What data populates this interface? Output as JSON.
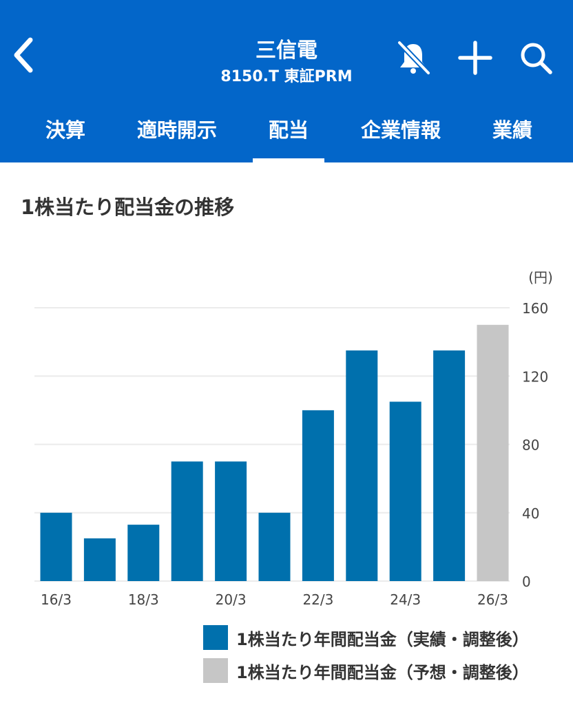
{
  "header": {
    "title": "三信電",
    "subtitle": "8150.T 東証PRM"
  },
  "tabs": [
    {
      "label": "決算"
    },
    {
      "label": "適時開示"
    },
    {
      "label": "配当",
      "active": true
    },
    {
      "label": "企業情報"
    },
    {
      "label": "業績"
    }
  ],
  "section": {
    "title": "1株当たり配当金の推移"
  },
  "colors": {
    "header": "#0366c9",
    "actual": "#0070ad",
    "forecast": "#c6c6c6"
  },
  "chart_data": {
    "type": "bar",
    "unit_label": "(円)",
    "categories": [
      "16/3",
      "17/3",
      "18/3",
      "19/3",
      "20/3",
      "21/3",
      "22/3",
      "23/3",
      "24/3",
      "25/3",
      "26/3"
    ],
    "x_tick_labels": [
      "16/3",
      "18/3",
      "20/3",
      "22/3",
      "24/3",
      "26/3"
    ],
    "values": [
      40,
      25,
      33,
      70,
      70,
      40,
      100,
      135,
      105,
      135,
      150
    ],
    "forecast_from_index": 10,
    "ylim": [
      0,
      160
    ],
    "y_ticks": [
      0,
      40,
      80,
      120,
      160
    ],
    "y_axis_side": "right",
    "grid": true,
    "legend": [
      {
        "name": "1株当たり年間配当金（実績・調整後）",
        "color": "#0070ad"
      },
      {
        "name": "1株当たり年間配当金（予想・調整後）",
        "color": "#c6c6c6"
      }
    ],
    "legend_position": "bottom-right"
  }
}
